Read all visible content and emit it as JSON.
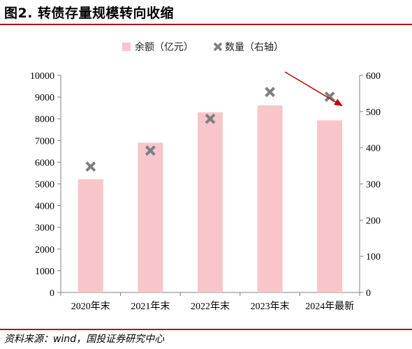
{
  "figure": {
    "title": "图2. 转债存量规模转向收缩",
    "source": "资料来源：wind，国投证券研究中心"
  },
  "colors": {
    "bar": "#f8c5cb",
    "marker": "#7f7f7f",
    "arrow": "#c00000",
    "rule": "#b5121b"
  },
  "chart_data": {
    "type": "bar",
    "categories": [
      "2020年末",
      "2021年末",
      "2022年末",
      "2023年末",
      "2024年最新"
    ],
    "series": [
      {
        "name": "余额（亿元）",
        "type": "bar",
        "axis": "left",
        "values": [
          5220,
          6900,
          8300,
          8620,
          7930
        ]
      },
      {
        "name": "数量（右轴）",
        "type": "scatter",
        "marker": "x",
        "axis": "right",
        "values": [
          348,
          392,
          480,
          554,
          541
        ]
      }
    ],
    "y_left": {
      "lim": [
        0,
        10000
      ],
      "ticks": [
        0,
        1000,
        2000,
        3000,
        4000,
        5000,
        6000,
        7000,
        8000,
        9000,
        10000
      ]
    },
    "y_right": {
      "lim": [
        0,
        600
      ],
      "ticks": [
        0,
        100,
        200,
        300,
        400,
        500,
        600
      ]
    },
    "legend": "top-center",
    "grid": false,
    "annotation": "downward arrow pointing to 2024 quantity"
  }
}
